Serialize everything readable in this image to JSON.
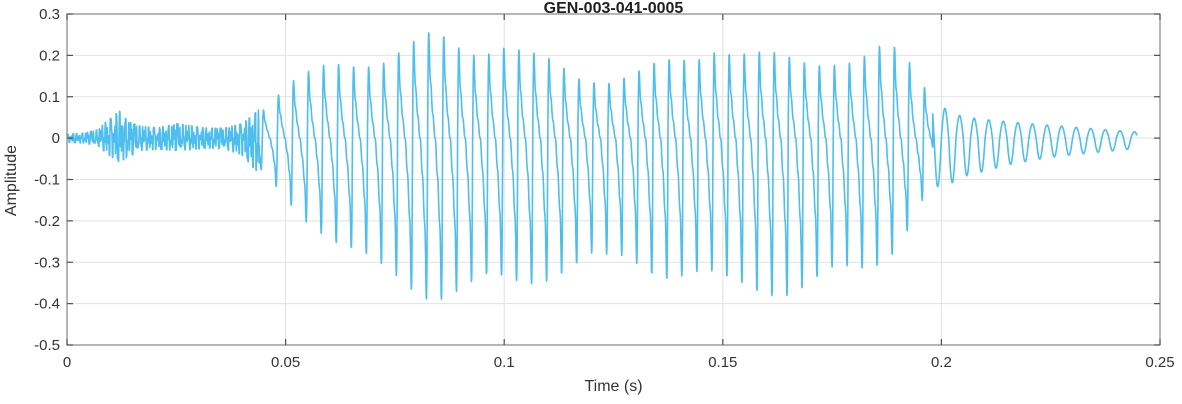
{
  "chart_data": {
    "type": "line",
    "title": "GEN-003-041-0005",
    "xlabel": "Time (s)",
    "ylabel": "Amplitude",
    "xlim": [
      0,
      0.25
    ],
    "ylim": [
      -0.5,
      0.3
    ],
    "xticks": [
      0,
      0.05,
      0.1,
      0.15,
      0.2,
      0.25
    ],
    "xtick_labels": [
      "0",
      "0.05",
      "0.1",
      "0.15",
      "0.2",
      "0.25"
    ],
    "yticks": [
      -0.5,
      -0.4,
      -0.3,
      -0.2,
      -0.1,
      0,
      0.1,
      0.2,
      0.3
    ],
    "ytick_labels": [
      "-0.5",
      "-0.4",
      "-0.3",
      "-0.2",
      "-0.1",
      "0",
      "0.1",
      "0.2",
      "0.3"
    ],
    "grid": true,
    "legend": null,
    "line_color": "#4DBEEE",
    "grid_color": "#e2e2e2",
    "box_color": "#858585",
    "tick_color": "#4f4f4f",
    "label_color": "#333333",
    "waveform": {
      "description": "speech-like waveform: initial low-level noise burst, voiced segment of glottal pulses ~291 Hz (peak +0.265 at t=0.084, min -0.41 at t=0.088), decaying sine tail ending at t=0.2447 s",
      "regions": [
        {
          "kind": "noise",
          "components": [
            [
              0.8,
              911,
              0.7
            ],
            [
              1.0,
              1517,
              0.0
            ],
            [
              0.7,
              2833,
              1.3
            ],
            [
              0.5,
              4451,
              2.1
            ]
          ],
          "envelope": [
            [
              0.0,
              0.01,
              -0.01
            ],
            [
              0.004,
              0.012,
              -0.012
            ],
            [
              0.007,
              0.02,
              -0.018
            ],
            [
              0.0095,
              0.045,
              -0.04
            ],
            [
              0.012,
              0.065,
              -0.058
            ],
            [
              0.014,
              0.04,
              -0.045
            ],
            [
              0.017,
              0.028,
              -0.03
            ],
            [
              0.021,
              0.025,
              -0.027
            ],
            [
              0.025,
              0.035,
              -0.03
            ],
            [
              0.028,
              0.03,
              -0.028
            ],
            [
              0.032,
              0.024,
              -0.024
            ],
            [
              0.036,
              0.024,
              -0.026
            ],
            [
              0.04,
              0.035,
              -0.04
            ],
            [
              0.0425,
              0.055,
              -0.07
            ],
            [
              0.044,
              0.07,
              -0.085
            ]
          ]
        },
        {
          "kind": "voiced",
          "f0_hz": 291,
          "harmonics": [
            1.0,
            0.62,
            0.4,
            0.27,
            0.17,
            0.11
          ],
          "envelope": [
            [
              0.044,
              0.07,
              -0.085
            ],
            [
              0.047,
              0.1,
              -0.12
            ],
            [
              0.05,
              0.13,
              -0.15
            ],
            [
              0.053,
              0.15,
              -0.19
            ],
            [
              0.057,
              0.17,
              -0.22
            ],
            [
              0.06,
              0.19,
              -0.26
            ],
            [
              0.064,
              0.2,
              -0.3
            ],
            [
              0.068,
              0.205,
              -0.33
            ],
            [
              0.072,
              0.205,
              -0.35
            ],
            [
              0.076,
              0.22,
              -0.36
            ],
            [
              0.08,
              0.24,
              -0.38
            ],
            [
              0.084,
              0.265,
              -0.4
            ],
            [
              0.088,
              0.25,
              -0.41
            ],
            [
              0.092,
              0.235,
              -0.41
            ],
            [
              0.096,
              0.24,
              -0.39
            ],
            [
              0.1,
              0.245,
              -0.375
            ],
            [
              0.104,
              0.22,
              -0.36
            ],
            [
              0.108,
              0.2,
              -0.35
            ],
            [
              0.112,
              0.19,
              -0.345
            ],
            [
              0.116,
              0.165,
              -0.345
            ],
            [
              0.12,
              0.16,
              -0.33
            ],
            [
              0.124,
              0.155,
              -0.33
            ],
            [
              0.128,
              0.16,
              -0.31
            ],
            [
              0.132,
              0.17,
              -0.32
            ],
            [
              0.136,
              0.19,
              -0.34
            ],
            [
              0.14,
              0.2,
              -0.355
            ],
            [
              0.144,
              0.215,
              -0.37
            ],
            [
              0.148,
              0.245,
              -0.385
            ],
            [
              0.151,
              0.235,
              -0.39
            ],
            [
              0.155,
              0.22,
              -0.38
            ],
            [
              0.159,
              0.21,
              -0.375
            ],
            [
              0.163,
              0.205,
              -0.385
            ],
            [
              0.167,
              0.2,
              -0.4
            ],
            [
              0.171,
              0.205,
              -0.395
            ],
            [
              0.175,
              0.21,
              -0.37
            ],
            [
              0.179,
              0.205,
              -0.35
            ],
            [
              0.183,
              0.21,
              -0.33
            ],
            [
              0.187,
              0.23,
              -0.3
            ],
            [
              0.19,
              0.22,
              -0.27
            ],
            [
              0.193,
              0.19,
              -0.22
            ],
            [
              0.196,
              0.14,
              -0.16
            ],
            [
              0.198,
              0.11,
              -0.13
            ]
          ]
        },
        {
          "kind": "sine",
          "freq_hz": 300,
          "envelope": [
            [
              0.198,
              0.1,
              -0.12
            ],
            [
              0.202,
              0.06,
              -0.11
            ],
            [
              0.206,
              0.05,
              -0.09
            ],
            [
              0.21,
              0.045,
              -0.08
            ],
            [
              0.215,
              0.04,
              -0.065
            ],
            [
              0.22,
              0.035,
              -0.055
            ],
            [
              0.226,
              0.03,
              -0.045
            ],
            [
              0.232,
              0.025,
              -0.038
            ],
            [
              0.238,
              0.02,
              -0.032
            ],
            [
              0.2447,
              0.015,
              -0.025
            ]
          ]
        }
      ]
    }
  }
}
